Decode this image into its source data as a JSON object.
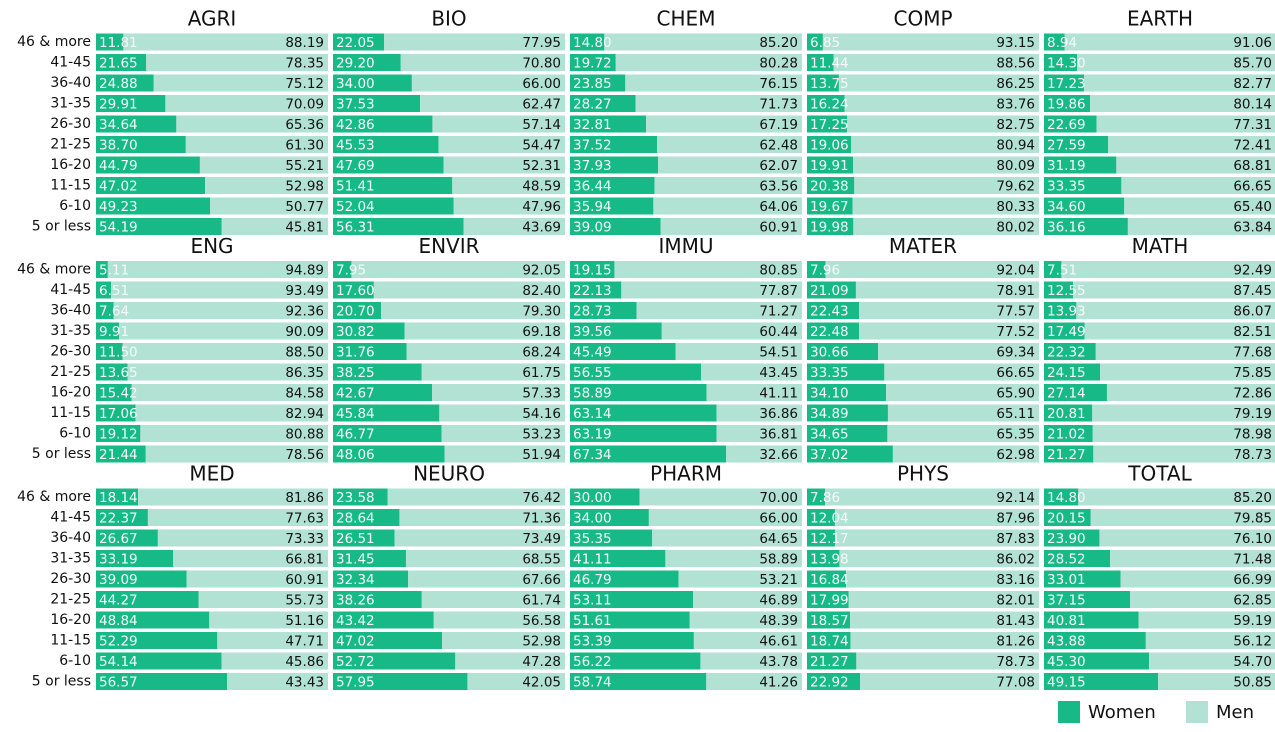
{
  "chart_data": {
    "type": "bar",
    "orientation": "horizontal",
    "stacked": true,
    "xlim": [
      0,
      100
    ],
    "categories": [
      "46 & more",
      "41-45",
      "36-40",
      "31-35",
      "26-30",
      "21-25",
      "16-20",
      "11-15",
      "6-10",
      "5 or less"
    ],
    "legend": [
      {
        "name": "Women",
        "color": "#17b987"
      },
      {
        "name": "Men",
        "color": "#b2e2d4"
      }
    ],
    "panels": [
      {
        "title": "AGRI",
        "series": [
          {
            "values": [
              11.81,
              21.65,
              24.88,
              29.91,
              34.64,
              38.7,
              44.79,
              47.02,
              49.23,
              54.19
            ],
            "value_labels": [
              "11.81",
              "21.65",
              "24.88",
              "29.91",
              "34.64",
              "38.70",
              "44.79",
              "47.02",
              "49.23",
              "54.19"
            ]
          },
          {
            "values": [
              88.19,
              78.35,
              75.12,
              70.09,
              65.36,
              61.3,
              55.21,
              52.98,
              50.77,
              45.81
            ],
            "value_labels": [
              "88.19",
              "78.35",
              "75.12",
              "70.09",
              "65.36",
              "61.30",
              "55.21",
              "52.98",
              "50.77",
              "45.81"
            ]
          }
        ]
      },
      {
        "title": "BIO",
        "series": [
          {
            "values": [
              22.05,
              29.2,
              34.0,
              37.53,
              42.86,
              45.53,
              47.69,
              51.41,
              52.04,
              56.31
            ],
            "value_labels": [
              "22.05",
              "29.20",
              "34.00",
              "37.53",
              "42.86",
              "45.53",
              "47.69",
              "51.41",
              "52.04",
              "56.31"
            ]
          },
          {
            "values": [
              77.95,
              70.8,
              66.0,
              62.47,
              57.14,
              54.47,
              52.31,
              48.59,
              47.96,
              43.69
            ],
            "value_labels": [
              "77.95",
              "70.80",
              "66.00",
              "62.47",
              "57.14",
              "54.47",
              "52.31",
              "48.59",
              "47.96",
              "43.69"
            ]
          }
        ]
      },
      {
        "title": "CHEM",
        "series": [
          {
            "values": [
              14.8,
              19.72,
              23.85,
              28.27,
              32.81,
              37.52,
              37.93,
              36.44,
              35.94,
              39.09
            ],
            "value_labels": [
              "14.80",
              "19.72",
              "23.85",
              "28.27",
              "32.81",
              "37.52",
              "37.93",
              "36.44",
              "35.94",
              "39.09"
            ]
          },
          {
            "values": [
              85.2,
              80.28,
              76.15,
              71.73,
              67.19,
              62.48,
              62.07,
              63.56,
              64.06,
              60.91
            ],
            "value_labels": [
              "85.20",
              "80.28",
              "76.15",
              "71.73",
              "67.19",
              "62.48",
              "62.07",
              "63.56",
              "64.06",
              "60.91"
            ]
          }
        ]
      },
      {
        "title": "COMP",
        "series": [
          {
            "values": [
              6.85,
              11.44,
              13.75,
              16.24,
              17.25,
              19.06,
              19.91,
              20.38,
              19.67,
              19.98
            ],
            "value_labels": [
              "6.85",
              "11.44",
              "13.75",
              "16.24",
              "17.25",
              "19.06",
              "19.91",
              "20.38",
              "19.67",
              "19.98"
            ]
          },
          {
            "values": [
              93.15,
              88.56,
              86.25,
              83.76,
              82.75,
              80.94,
              80.09,
              79.62,
              80.33,
              80.02
            ],
            "value_labels": [
              "93.15",
              "88.56",
              "86.25",
              "83.76",
              "82.75",
              "80.94",
              "80.09",
              "79.62",
              "80.33",
              "80.02"
            ]
          }
        ]
      },
      {
        "title": "EARTH",
        "series": [
          {
            "values": [
              8.94,
              14.3,
              17.23,
              19.86,
              22.69,
              27.59,
              31.19,
              33.35,
              34.6,
              36.16
            ],
            "value_labels": [
              "8.94",
              "14.30",
              "17.23",
              "19.86",
              "22.69",
              "27.59",
              "31.19",
              "33.35",
              "34.60",
              "36.16"
            ]
          },
          {
            "values": [
              91.06,
              85.7,
              82.77,
              80.14,
              77.31,
              72.41,
              68.81,
              66.65,
              65.4,
              63.84
            ],
            "value_labels": [
              "91.06",
              "85.70",
              "82.77",
              "80.14",
              "77.31",
              "72.41",
              "68.81",
              "66.65",
              "65.40",
              "63.84"
            ]
          }
        ]
      },
      {
        "title": "ENG",
        "series": [
          {
            "values": [
              5.11,
              6.51,
              7.64,
              9.91,
              11.5,
              13.65,
              15.42,
              17.06,
              19.12,
              21.44
            ],
            "value_labels": [
              "5.11",
              "6.51",
              "7.64",
              "9.91",
              "11.50",
              "13.65",
              "15.42",
              "17.06",
              "19.12",
              "21.44"
            ]
          },
          {
            "values": [
              94.89,
              93.49,
              92.36,
              90.09,
              88.5,
              86.35,
              84.58,
              82.94,
              80.88,
              78.56
            ],
            "value_labels": [
              "94.89",
              "93.49",
              "92.36",
              "90.09",
              "88.50",
              "86.35",
              "84.58",
              "82.94",
              "80.88",
              "78.56"
            ]
          }
        ]
      },
      {
        "title": "ENVIR",
        "series": [
          {
            "values": [
              7.95,
              17.6,
              20.7,
              30.82,
              31.76,
              38.25,
              42.67,
              45.84,
              46.77,
              48.06
            ],
            "value_labels": [
              "7.95",
              "17.60",
              "20.70",
              "30.82",
              "31.76",
              "38.25",
              "42.67",
              "45.84",
              "46.77",
              "48.06"
            ]
          },
          {
            "values": [
              92.05,
              82.4,
              79.3,
              69.18,
              68.24,
              61.75,
              57.33,
              54.16,
              53.23,
              51.94
            ],
            "value_labels": [
              "92.05",
              "82.40",
              "79.30",
              "69.18",
              "68.24",
              "61.75",
              "57.33",
              "54.16",
              "53.23",
              "51.94"
            ]
          }
        ]
      },
      {
        "title": "IMMU",
        "series": [
          {
            "values": [
              19.15,
              22.13,
              28.73,
              39.56,
              45.49,
              56.55,
              58.89,
              63.14,
              63.19,
              67.34
            ],
            "value_labels": [
              "19.15",
              "22.13",
              "28.73",
              "39.56",
              "45.49",
              "56.55",
              "58.89",
              "63.14",
              "63.19",
              "67.34"
            ]
          },
          {
            "values": [
              80.85,
              77.87,
              71.27,
              60.44,
              54.51,
              43.45,
              41.11,
              36.86,
              36.81,
              32.66
            ],
            "value_labels": [
              "80.85",
              "77.87",
              "71.27",
              "60.44",
              "54.51",
              "43.45",
              "41.11",
              "36.86",
              "36.81",
              "32.66"
            ]
          }
        ]
      },
      {
        "title": "MATER",
        "series": [
          {
            "values": [
              7.96,
              21.09,
              22.43,
              22.48,
              30.66,
              33.35,
              34.1,
              34.89,
              34.65,
              37.02
            ],
            "value_labels": [
              "7.96",
              "21.09",
              "22.43",
              "22.48",
              "30.66",
              "33.35",
              "34.10",
              "34.89",
              "34.65",
              "37.02"
            ]
          },
          {
            "values": [
              92.04,
              78.91,
              77.57,
              77.52,
              69.34,
              66.65,
              65.9,
              65.11,
              65.35,
              62.98
            ],
            "value_labels": [
              "92.04",
              "78.91",
              "77.57",
              "77.52",
              "69.34",
              "66.65",
              "65.90",
              "65.11",
              "65.35",
              "62.98"
            ]
          }
        ]
      },
      {
        "title": "MATH",
        "series": [
          {
            "values": [
              7.51,
              12.55,
              13.93,
              17.49,
              22.32,
              24.15,
              27.14,
              20.81,
              21.02,
              21.27
            ],
            "value_labels": [
              "7.51",
              "12.55",
              "13.93",
              "17.49",
              "22.32",
              "24.15",
              "27.14",
              "20.81",
              "21.02",
              "21.27"
            ]
          },
          {
            "values": [
              92.49,
              87.45,
              86.07,
              82.51,
              77.68,
              75.85,
              72.86,
              79.19,
              78.98,
              78.73
            ],
            "value_labels": [
              "92.49",
              "87.45",
              "86.07",
              "82.51",
              "77.68",
              "75.85",
              "72.86",
              "79.19",
              "78.98",
              "78.73"
            ]
          }
        ]
      },
      {
        "title": "MED",
        "series": [
          {
            "values": [
              18.14,
              22.37,
              26.67,
              33.19,
              39.09,
              44.27,
              48.84,
              52.29,
              54.14,
              56.57
            ],
            "value_labels": [
              "18.14",
              "22.37",
              "26.67",
              "33.19",
              "39.09",
              "44.27",
              "48.84",
              "52.29",
              "54.14",
              "56.57"
            ]
          },
          {
            "values": [
              81.86,
              77.63,
              73.33,
              66.81,
              60.91,
              55.73,
              51.16,
              47.71,
              45.86,
              43.43
            ],
            "value_labels": [
              "81.86",
              "77.63",
              "73.33",
              "66.81",
              "60.91",
              "55.73",
              "51.16",
              "47.71",
              "45.86",
              "43.43"
            ]
          }
        ]
      },
      {
        "title": "NEURO",
        "series": [
          {
            "values": [
              23.58,
              28.64,
              26.51,
              31.45,
              32.34,
              38.26,
              43.42,
              47.02,
              52.72,
              57.95
            ],
            "value_labels": [
              "23.58",
              "28.64",
              "26.51",
              "31.45",
              "32.34",
              "38.26",
              "43.42",
              "47.02",
              "52.72",
              "57.95"
            ]
          },
          {
            "values": [
              76.42,
              71.36,
              73.49,
              68.55,
              67.66,
              61.74,
              56.58,
              52.98,
              47.28,
              42.05
            ],
            "value_labels": [
              "76.42",
              "71.36",
              "73.49",
              "68.55",
              "67.66",
              "61.74",
              "56.58",
              "52.98",
              "47.28",
              "42.05"
            ]
          }
        ]
      },
      {
        "title": "PHARM",
        "series": [
          {
            "values": [
              30.0,
              34.0,
              35.35,
              41.11,
              46.79,
              53.11,
              51.61,
              53.39,
              56.22,
              58.74
            ],
            "value_labels": [
              "30.00",
              "34.00",
              "35.35",
              "41.11",
              "46.79",
              "53.11",
              "51.61",
              "53.39",
              "56.22",
              "58.74"
            ]
          },
          {
            "values": [
              70.0,
              66.0,
              64.65,
              58.89,
              53.21,
              46.89,
              48.39,
              46.61,
              43.78,
              41.26
            ],
            "value_labels": [
              "70.00",
              "66.00",
              "64.65",
              "58.89",
              "53.21",
              "46.89",
              "48.39",
              "46.61",
              "43.78",
              "41.26"
            ]
          }
        ]
      },
      {
        "title": "PHYS",
        "series": [
          {
            "values": [
              7.86,
              12.04,
              12.17,
              13.98,
              16.84,
              17.99,
              18.57,
              18.74,
              21.27,
              22.92
            ],
            "value_labels": [
              "7.86",
              "12.04",
              "12.17",
              "13.98",
              "16.84",
              "17.99",
              "18.57",
              "18.74",
              "21.27",
              "22.92"
            ]
          },
          {
            "values": [
              92.14,
              87.96,
              87.83,
              86.02,
              83.16,
              82.01,
              81.43,
              81.26,
              78.73,
              77.08
            ],
            "value_labels": [
              "92.14",
              "87.96",
              "87.83",
              "86.02",
              "83.16",
              "82.01",
              "81.43",
              "81.26",
              "78.73",
              "77.08"
            ]
          }
        ]
      },
      {
        "title": "TOTAL",
        "series": [
          {
            "values": [
              14.8,
              20.15,
              23.9,
              28.52,
              33.01,
              37.15,
              40.81,
              43.88,
              45.3,
              49.15
            ],
            "value_labels": [
              "14.80",
              "20.15",
              "23.90",
              "28.52",
              "33.01",
              "37.15",
              "40.81",
              "43.88",
              "45.30",
              "49.15"
            ]
          },
          {
            "values": [
              85.2,
              79.85,
              76.1,
              71.48,
              66.99,
              62.85,
              59.19,
              56.12,
              54.7,
              50.85
            ],
            "value_labels": [
              "85.20",
              "79.85",
              "76.10",
              "71.48",
              "66.99",
              "62.85",
              "59.19",
              "56.12",
              "54.70",
              "50.85"
            ]
          }
        ]
      }
    ]
  }
}
